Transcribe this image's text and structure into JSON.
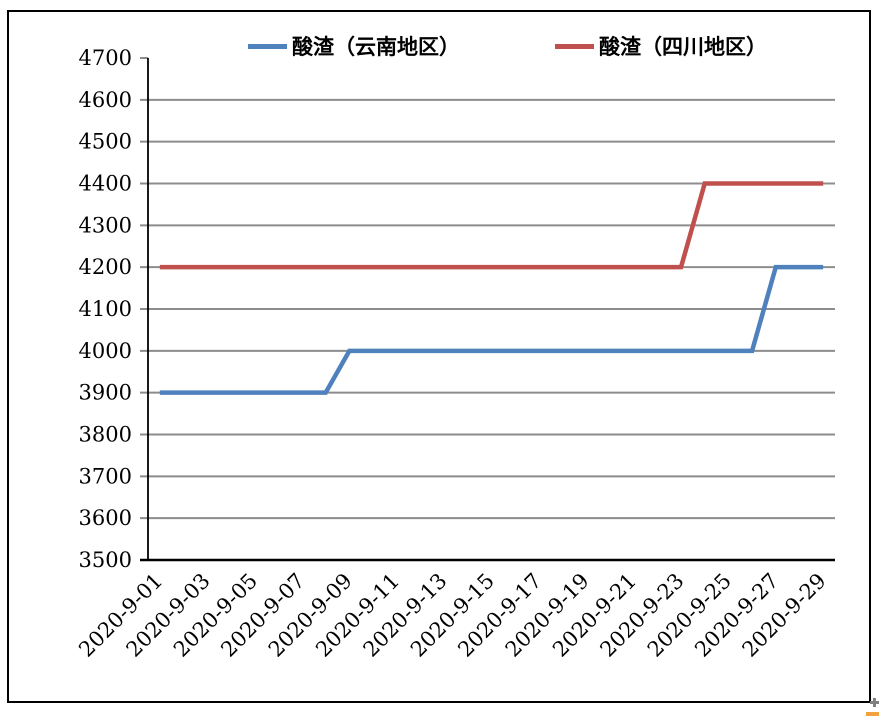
{
  "chart_data": {
    "type": "line",
    "title": "",
    "categories": [
      "2020-9-01",
      "2020-9-02",
      "2020-9-03",
      "2020-9-04",
      "2020-9-05",
      "2020-9-06",
      "2020-9-07",
      "2020-9-08",
      "2020-9-09",
      "2020-9-10",
      "2020-9-11",
      "2020-9-12",
      "2020-9-13",
      "2020-9-14",
      "2020-9-15",
      "2020-9-16",
      "2020-9-17",
      "2020-9-18",
      "2020-9-19",
      "2020-9-20",
      "2020-9-21",
      "2020-9-22",
      "2020-9-23",
      "2020-9-24",
      "2020-9-25",
      "2020-9-26",
      "2020-9-27",
      "2020-9-28",
      "2020-9-29"
    ],
    "xtick_labels": [
      "2020-9-01",
      "2020-9-03",
      "2020-9-05",
      "2020-9-07",
      "2020-9-09",
      "2020-9-11",
      "2020-9-13",
      "2020-9-15",
      "2020-9-17",
      "2020-9-19",
      "2020-9-21",
      "2020-9-23",
      "2020-9-25",
      "2020-9-27",
      "2020-9-29"
    ],
    "series": [
      {
        "name": "酸渣（云南地区）",
        "color": "#4F81BD",
        "values": [
          3900,
          3900,
          3900,
          3900,
          3900,
          3900,
          3900,
          3900,
          4000,
          4000,
          4000,
          4000,
          4000,
          4000,
          4000,
          4000,
          4000,
          4000,
          4000,
          4000,
          4000,
          4000,
          4000,
          4000,
          4000,
          4000,
          4200,
          4200,
          4200
        ]
      },
      {
        "name": "酸渣（四川地区）",
        "color": "#C0504D",
        "values": [
          4200,
          4200,
          4200,
          4200,
          4200,
          4200,
          4200,
          4200,
          4200,
          4200,
          4200,
          4200,
          4200,
          4200,
          4200,
          4200,
          4200,
          4200,
          4200,
          4200,
          4200,
          4200,
          4200,
          4400,
          4400,
          4400,
          4400,
          4400,
          4400
        ]
      }
    ],
    "ylim": [
      3500,
      4700
    ],
    "yticks": [
      3500,
      3600,
      3700,
      3800,
      3900,
      4000,
      4100,
      4200,
      4300,
      4400,
      4500,
      4600,
      4700
    ],
    "grid": "horizontal",
    "legend_position": "top"
  },
  "legend": {
    "items": [
      {
        "label": "酸渣（云南地区）",
        "color": "#4F81BD"
      },
      {
        "label": "酸渣（四川地区）",
        "color": "#C0504D"
      }
    ]
  },
  "colors": {
    "gridline": "#8C8C8C",
    "axis": "#000000",
    "border": "#000000",
    "series_blue": "#4F81BD",
    "series_red": "#C0504D",
    "corner_plus": "#808080",
    "corner_dash": "#F2A23C"
  }
}
